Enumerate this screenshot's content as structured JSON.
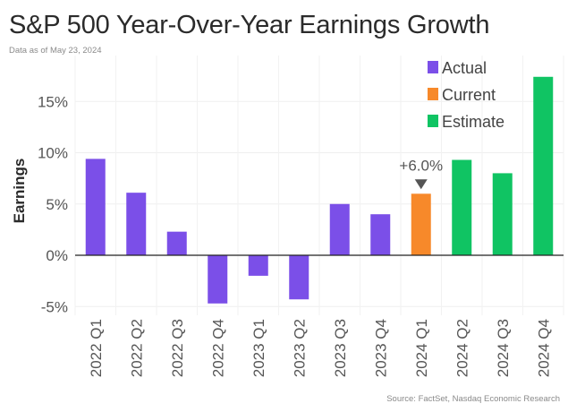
{
  "chart_data": {
    "type": "bar",
    "title": "S&P 500 Year-Over-Year Earnings Growth",
    "subtitle": "Data as of May 23, 2024",
    "source": "Source: FactSet, Nasdaq Economic Research",
    "ylabel": "Earnings",
    "xlabel": "",
    "categories": [
      "2022 Q1",
      "2022 Q2",
      "2022 Q3",
      "2022 Q4",
      "2023 Q1",
      "2023 Q2",
      "2023 Q3",
      "2023 Q4",
      "2024 Q1",
      "2024 Q2",
      "2024 Q3",
      "2024 Q4"
    ],
    "values": [
      9.4,
      6.1,
      2.3,
      -4.7,
      -2.0,
      -4.3,
      5.0,
      4.0,
      6.0,
      9.3,
      8.0,
      17.4
    ],
    "status": [
      "Actual",
      "Actual",
      "Actual",
      "Actual",
      "Actual",
      "Actual",
      "Actual",
      "Actual",
      "Current",
      "Estimate",
      "Estimate",
      "Estimate"
    ],
    "legend": [
      {
        "label": "Actual",
        "color": "#7b4fe8"
      },
      {
        "label": "Current",
        "color": "#f7892a"
      },
      {
        "label": "Estimate",
        "color": "#10c463"
      }
    ],
    "legend_position": "top-right",
    "yticks": [
      -5,
      0,
      5,
      10,
      15
    ],
    "ytick_labels": [
      "-5%",
      "0%",
      "5%",
      "10%",
      "15%"
    ],
    "ylim": [
      -5.5,
      18.5
    ],
    "grid": true,
    "annotation": {
      "category": "2024 Q1",
      "text": "+6.0%"
    }
  }
}
